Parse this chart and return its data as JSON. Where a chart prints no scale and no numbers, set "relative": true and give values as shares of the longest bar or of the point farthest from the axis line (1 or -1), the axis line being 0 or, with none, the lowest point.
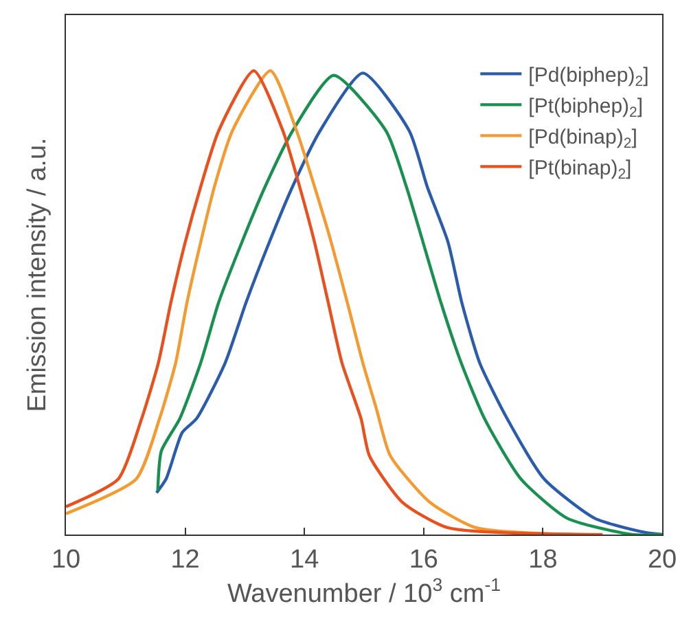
{
  "chart_data": {
    "type": "line",
    "relative": true,
    "xlabel": "Wavenumber / 10$^{3}$ cm$^{-1}$",
    "ylabel": "Emission intensity / a.u.",
    "xlim": [
      10,
      20
    ],
    "xticks": [
      10,
      12,
      14,
      16,
      18,
      20
    ],
    "tick_labels": "x",
    "legend": "top right",
    "marker": "none",
    "line_style": "solid",
    "series": [
      {
        "name": "[Pd(biphep)$_{2}$]",
        "color": "#2a5caa",
        "x": [
          11.52,
          11.68,
          11.95,
          12.19,
          12.67,
          13.02,
          13.41,
          13.8,
          14.26,
          14.98,
          15.76,
          16.06,
          16.41,
          16.64,
          16.94,
          17.4,
          18.02,
          18.87,
          19.7,
          20.0
        ],
        "values": [
          0.09,
          0.12,
          0.22,
          0.25,
          0.37,
          0.5,
          0.63,
          0.75,
          0.87,
          0.995,
          0.87,
          0.75,
          0.63,
          0.5,
          0.37,
          0.25,
          0.12,
          0.035,
          0.005,
          0.0
        ]
      },
      {
        "name": "[Pt(biphep)$_{2}$]",
        "color": "#1a9050",
        "x": [
          11.54,
          11.6,
          11.91,
          12.26,
          12.56,
          12.95,
          13.34,
          13.8,
          14.49,
          15.37,
          15.71,
          15.99,
          16.29,
          16.63,
          17.02,
          17.63,
          18.41,
          19.5,
          20.0
        ],
        "values": [
          0.095,
          0.18,
          0.25,
          0.37,
          0.5,
          0.63,
          0.75,
          0.87,
          0.99,
          0.87,
          0.75,
          0.63,
          0.5,
          0.37,
          0.25,
          0.12,
          0.035,
          0.0,
          0.0
        ]
      },
      {
        "name": "[Pd(binap)$_{2}$]",
        "color": "#f39a30",
        "x": [
          10.0,
          11.18,
          11.57,
          11.84,
          12.03,
          12.26,
          12.49,
          12.79,
          13.43,
          13.87,
          14.17,
          14.45,
          14.72,
          14.98,
          15.21,
          15.44,
          16.1,
          16.87,
          18.5
        ],
        "values": [
          0.045,
          0.12,
          0.25,
          0.37,
          0.5,
          0.63,
          0.75,
          0.87,
          1.0,
          0.87,
          0.75,
          0.63,
          0.5,
          0.37,
          0.27,
          0.17,
          0.07,
          0.015,
          0.0
        ]
      },
      {
        "name": "[Pt(binap)$_{2}$]",
        "color": "#e8501e",
        "x": [
          10.0,
          10.88,
          11.27,
          11.55,
          11.76,
          12.0,
          12.26,
          12.56,
          13.15,
          13.64,
          13.92,
          14.17,
          14.4,
          14.63,
          14.95,
          15.09,
          15.64,
          16.4,
          19.0
        ],
        "values": [
          0.06,
          0.12,
          0.25,
          0.37,
          0.5,
          0.63,
          0.75,
          0.87,
          1.0,
          0.87,
          0.75,
          0.63,
          0.5,
          0.37,
          0.25,
          0.17,
          0.07,
          0.015,
          0.0
        ]
      }
    ]
  }
}
